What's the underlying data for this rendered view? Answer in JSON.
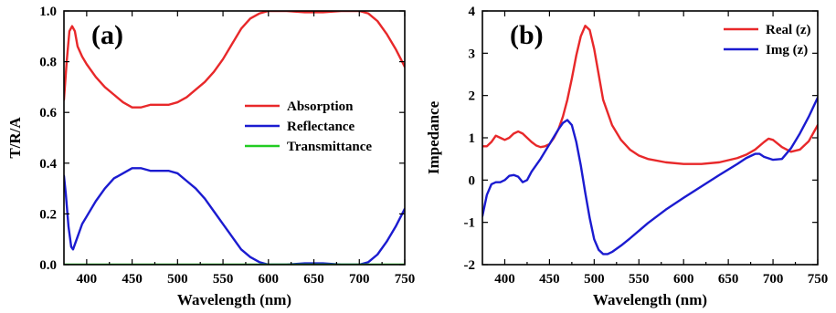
{
  "chart_data": [
    {
      "type": "line",
      "panel_label": "(a)",
      "xlabel": "Wavelength (nm)",
      "ylabel": "T/R/A",
      "xlim": [
        375,
        750
      ],
      "ylim": [
        0,
        1.0
      ],
      "xticks": [
        400,
        450,
        500,
        550,
        600,
        650,
        700,
        750
      ],
      "yticks": [
        0.0,
        0.2,
        0.4,
        0.6,
        0.8,
        1.0
      ],
      "ytick_labels": [
        "0.0",
        "0.2",
        "0.4",
        "0.6",
        "0.8",
        "1.0"
      ],
      "legend_position": "center-right",
      "grid": false,
      "series": [
        {
          "name": "Absorption",
          "color": "#e8282a",
          "x": [
            375,
            378,
            381,
            384,
            387,
            390,
            395,
            400,
            410,
            420,
            430,
            440,
            450,
            460,
            470,
            480,
            490,
            500,
            510,
            520,
            530,
            540,
            550,
            560,
            570,
            580,
            590,
            600,
            610,
            620,
            640,
            660,
            680,
            700,
            710,
            720,
            730,
            740,
            750
          ],
          "y": [
            0.65,
            0.8,
            0.92,
            0.94,
            0.92,
            0.86,
            0.82,
            0.79,
            0.74,
            0.7,
            0.67,
            0.64,
            0.62,
            0.62,
            0.63,
            0.63,
            0.63,
            0.64,
            0.66,
            0.69,
            0.72,
            0.76,
            0.81,
            0.87,
            0.93,
            0.97,
            0.99,
            1.0,
            1.0,
            1.0,
            0.995,
            0.995,
            1.0,
            1.0,
            0.99,
            0.96,
            0.91,
            0.85,
            0.78
          ]
        },
        {
          "name": "Reflectance",
          "color": "#1b1bd0",
          "x": [
            375,
            377,
            380,
            383,
            385,
            390,
            395,
            400,
            410,
            420,
            430,
            440,
            450,
            460,
            470,
            480,
            490,
            500,
            510,
            520,
            530,
            540,
            550,
            560,
            570,
            580,
            590,
            600,
            610,
            620,
            640,
            660,
            680,
            700,
            710,
            720,
            730,
            740,
            750
          ],
          "y": [
            0.35,
            0.28,
            0.15,
            0.07,
            0.06,
            0.11,
            0.16,
            0.19,
            0.25,
            0.3,
            0.34,
            0.36,
            0.38,
            0.38,
            0.37,
            0.37,
            0.37,
            0.36,
            0.33,
            0.3,
            0.26,
            0.21,
            0.16,
            0.11,
            0.06,
            0.03,
            0.01,
            0.0,
            0.0,
            0.0,
            0.005,
            0.005,
            0.0,
            0.0,
            0.01,
            0.04,
            0.09,
            0.15,
            0.22
          ]
        },
        {
          "name": "Transmittance",
          "color": "#22cc22",
          "x": [
            375,
            750
          ],
          "y": [
            0.0,
            0.0
          ]
        }
      ]
    },
    {
      "type": "line",
      "panel_label": "(b)",
      "xlabel": "Wavelength (nm)",
      "ylabel": "Impedance",
      "xlim": [
        375,
        750
      ],
      "ylim": [
        -2,
        4
      ],
      "xticks": [
        400,
        450,
        500,
        550,
        600,
        650,
        700,
        750
      ],
      "yticks": [
        -2,
        -1,
        0,
        1,
        2,
        3,
        4
      ],
      "ytick_labels": [
        "-2",
        "-1",
        "0",
        "1",
        "2",
        "3",
        "4"
      ],
      "legend_position": "top-right",
      "grid": false,
      "series": [
        {
          "name": "Real (z)",
          "color": "#e8282a",
          "x": [
            375,
            380,
            385,
            390,
            395,
            400,
            405,
            410,
            415,
            420,
            425,
            430,
            435,
            440,
            445,
            450,
            455,
            460,
            465,
            470,
            475,
            480,
            485,
            490,
            495,
            500,
            505,
            510,
            520,
            530,
            540,
            550,
            560,
            580,
            600,
            620,
            640,
            660,
            670,
            680,
            690,
            695,
            700,
            710,
            720,
            730,
            740,
            750
          ],
          "y": [
            0.8,
            0.8,
            0.9,
            1.05,
            1.0,
            0.95,
            1.0,
            1.1,
            1.15,
            1.1,
            1.0,
            0.9,
            0.82,
            0.78,
            0.8,
            0.85,
            1.0,
            1.2,
            1.5,
            1.9,
            2.4,
            2.95,
            3.4,
            3.65,
            3.55,
            3.1,
            2.5,
            1.9,
            1.3,
            0.95,
            0.72,
            0.58,
            0.5,
            0.42,
            0.38,
            0.38,
            0.42,
            0.52,
            0.6,
            0.72,
            0.9,
            0.98,
            0.95,
            0.78,
            0.67,
            0.72,
            0.92,
            1.3
          ]
        },
        {
          "name": "Img (z)",
          "color": "#1b1bd0",
          "x": [
            375,
            380,
            385,
            390,
            395,
            400,
            405,
            410,
            415,
            420,
            425,
            430,
            440,
            450,
            460,
            465,
            470,
            475,
            480,
            485,
            490,
            495,
            500,
            505,
            510,
            515,
            520,
            530,
            540,
            550,
            560,
            580,
            600,
            620,
            640,
            660,
            670,
            680,
            685,
            690,
            700,
            710,
            720,
            730,
            740,
            750
          ],
          "y": [
            -0.85,
            -0.35,
            -0.1,
            -0.05,
            -0.05,
            0.0,
            0.1,
            0.12,
            0.08,
            -0.05,
            0.0,
            0.2,
            0.5,
            0.85,
            1.2,
            1.35,
            1.42,
            1.3,
            0.9,
            0.35,
            -0.3,
            -0.9,
            -1.4,
            -1.65,
            -1.75,
            -1.75,
            -1.7,
            -1.55,
            -1.38,
            -1.2,
            -1.02,
            -0.7,
            -0.42,
            -0.15,
            0.12,
            0.38,
            0.52,
            0.62,
            0.62,
            0.55,
            0.48,
            0.5,
            0.75,
            1.1,
            1.5,
            1.95
          ]
        }
      ]
    }
  ]
}
